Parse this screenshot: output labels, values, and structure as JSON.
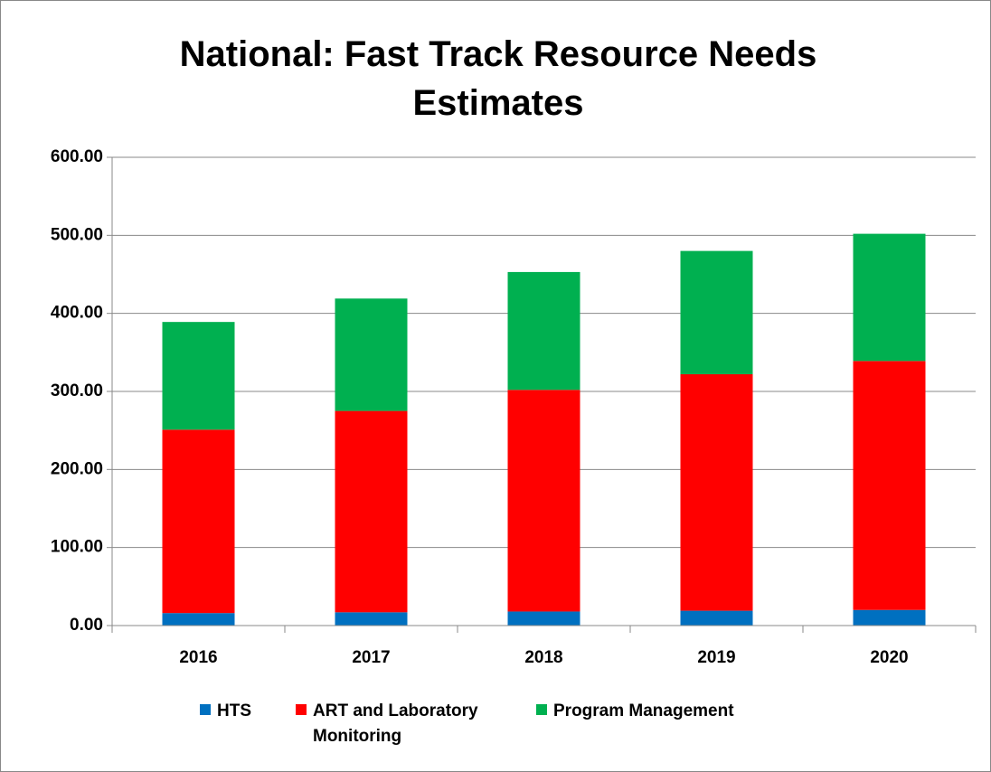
{
  "chart_data": {
    "type": "stacked_bar",
    "title": "National: Fast Track Resource Needs Estimates",
    "categories": [
      "2016",
      "2017",
      "2018",
      "2019",
      "2020"
    ],
    "series": [
      {
        "name": "HTS",
        "color": "#0070c0",
        "values": [
          16,
          17,
          18,
          19,
          20
        ]
      },
      {
        "name": "ART and Laboratory Monitoring",
        "color": "#ff0000",
        "values": [
          235,
          258,
          284,
          303,
          319
        ]
      },
      {
        "name": "Program Management",
        "color": "#00b050",
        "values": [
          138,
          144,
          151,
          158,
          163
        ]
      }
    ],
    "ylim": [
      0,
      600
    ],
    "yticks": [
      {
        "value": 0,
        "label": "0.00"
      },
      {
        "value": 100,
        "label": "100.00"
      },
      {
        "value": 200,
        "label": "200.00"
      },
      {
        "value": 300,
        "label": "300.00"
      },
      {
        "value": 400,
        "label": "400.00"
      },
      {
        "value": 500,
        "label": "500.00"
      },
      {
        "value": 600,
        "label": "600.00"
      }
    ],
    "grid": true,
    "legend": "bottom"
  }
}
